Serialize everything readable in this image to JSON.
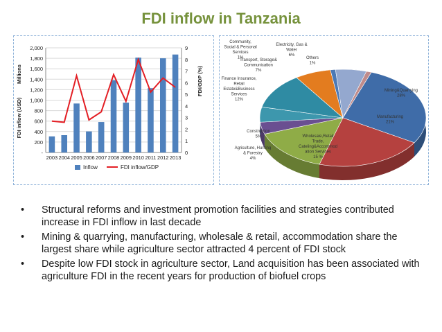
{
  "slide": {
    "title": "FDI inflow in Tanzania",
    "bullet_symbol": "•",
    "bullets": [
      "Structural reforms and investment promotion facilities and strategies contributed increase in FDI  inflow in last decade",
      "Mining & quarrying, manufacturing,  wholesale & retail, accommodation share the largest share while agriculture sector attracted  4 percent of FDI stock",
      "Despite low FDI stock in agriculture sector, Land acquisition has been associated with agriculture FDI in the recent years for production of biofuel crops"
    ]
  },
  "chart_data": [
    {
      "type": "bar",
      "categories": [
        "2003",
        "2004",
        "2005",
        "2006",
        "2007",
        "2008",
        "2009",
        "2010",
        "2011",
        "2012",
        "2013"
      ],
      "series": [
        {
          "name": "Inflow",
          "kind": "bar",
          "axis": "left",
          "color": "#4f81bd",
          "values": [
            308,
            331,
            936,
            403,
            582,
            1383,
            953,
            1813,
            1229,
            1800,
            1872
          ]
        },
        {
          "name": "FDI inflow/GDP",
          "kind": "line",
          "axis": "right",
          "color": "#e31e24",
          "values": [
            2.7,
            2.6,
            6.6,
            2.8,
            3.5,
            6.7,
            4.4,
            8.0,
            5.2,
            6.4,
            5.6
          ]
        }
      ],
      "ylabel_top": "Millions",
      "ylabel": "FDI inflow (USD)",
      "y2label": "FDI/GDP (%)",
      "ylim": [
        0,
        2000
      ],
      "y2lim": [
        0,
        9
      ],
      "yticks": [
        "-",
        "200",
        "400",
        "600",
        "800",
        "1,000",
        "1,200",
        "1,400",
        "1,600",
        "1,800",
        "2,000"
      ],
      "y2ticks": [
        "0",
        "1",
        "2",
        "3",
        "4",
        "5",
        "6",
        "7",
        "8",
        "9"
      ],
      "grid": true,
      "legend": "bottom"
    },
    {
      "type": "pie",
      "slices": [
        {
          "label": "Mining&Quarrying",
          "pct_label": "28%",
          "value": 28,
          "color": "#3f6ca8"
        },
        {
          "label": "Manufacturing",
          "pct_label": "21%",
          "value": 21,
          "color": "#b5413f"
        },
        {
          "label": "Wholesale,Retail Trade, Catering&Accommod ation Services",
          "pct_label": "15 %",
          "value": 15,
          "color": "#8fac47"
        },
        {
          "label": "Agriculture, Hunting & Forestry",
          "pct_label": "4%",
          "value": 4,
          "color": "#6a4f91"
        },
        {
          "label": "Construction",
          "pct_label": "5%",
          "value": 5,
          "color": "#3d97ad"
        },
        {
          "label": "Finance Insurance, Retail Estate&Business Services",
          "pct_label": "12%",
          "value": 12,
          "color": "#2f8ba3"
        },
        {
          "label": "Transport, Storage& Communication",
          "pct_label": "7%",
          "value": 7,
          "color": "#e37c1f"
        },
        {
          "label": "Community, Social & Personal Services",
          "pct_label": "1%",
          "value": 1,
          "color": "#4c79b5"
        },
        {
          "label": "Electricity, Gas & Water",
          "pct_label": "6%",
          "value": 6,
          "color": "#94a8cf"
        },
        {
          "label": "Others",
          "pct_label": "1%",
          "value": 1,
          "color": "#c08b8b"
        }
      ],
      "style": "3d",
      "legend": "none"
    }
  ]
}
